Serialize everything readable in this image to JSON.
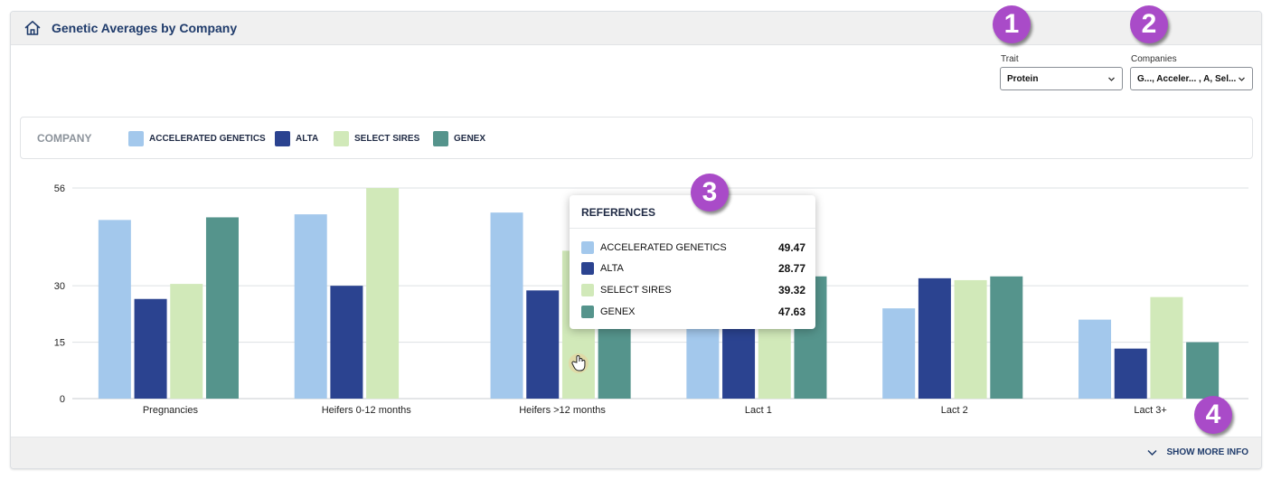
{
  "header": {
    "title": "Genetic Averages by Company",
    "icon": "home-icon"
  },
  "filters": {
    "trait": {
      "label": "Trait",
      "value": "Protein"
    },
    "companies": {
      "label": "Companies",
      "value": "G..., Acceler... , A, Sel..."
    }
  },
  "badges": [
    "1",
    "2",
    "3",
    "4"
  ],
  "legend": {
    "title": "COMPANY",
    "items": [
      {
        "label": "ACCELERATED GENETICS",
        "color": "#a3c8ec"
      },
      {
        "label": "ALTA",
        "color": "#2b4390"
      },
      {
        "label": "SELECT SIRES",
        "color": "#d1e9b9"
      },
      {
        "label": "GENEX",
        "color": "#55948c"
      }
    ]
  },
  "tooltip": {
    "title": "REFERENCES",
    "rows": [
      {
        "label": "ACCELERATED GENETICS",
        "value": "49.47",
        "color": "#a3c8ec"
      },
      {
        "label": "ALTA",
        "value": "28.77",
        "color": "#2b4390"
      },
      {
        "label": "SELECT SIRES",
        "value": "39.32",
        "color": "#d1e9b9"
      },
      {
        "label": "GENEX",
        "value": "47.63",
        "color": "#55948c"
      }
    ]
  },
  "footer": {
    "show_more": "SHOW MORE INFO"
  },
  "chart_data": {
    "type": "bar",
    "categories": [
      "Pregnancies",
      "Heifers 0-12 months",
      "Heifers >12 months",
      "Lact 1",
      "Lact 2",
      "Lact 3+"
    ],
    "yticks": [
      0,
      15,
      30,
      56
    ],
    "ylim": [
      0,
      56
    ],
    "grid": true,
    "series": [
      {
        "name": "ACCELERATED GENETICS",
        "color": "#a3c8ec",
        "values": [
          47.5,
          49,
          49.47,
          22,
          24,
          21
        ]
      },
      {
        "name": "ALTA",
        "color": "#2b4390",
        "values": [
          26.5,
          30,
          28.77,
          22,
          32,
          13.3
        ]
      },
      {
        "name": "SELECT SIRES",
        "color": "#d1e9b9",
        "values": [
          30.5,
          56,
          39.32,
          22,
          31.5,
          27
        ]
      },
      {
        "name": "GENEX",
        "color": "#55948c",
        "values": [
          48.2,
          null,
          47.63,
          32.5,
          32.5,
          15
        ]
      }
    ]
  }
}
